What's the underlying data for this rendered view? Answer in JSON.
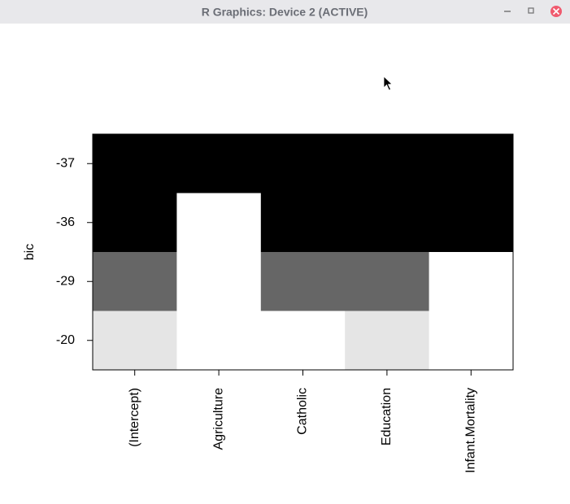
{
  "window": {
    "title": "R Graphics: Device 2 (ACTIVE)"
  },
  "chart_data": {
    "type": "heatmap",
    "ylabel": "bic",
    "x_categories": [
      "(Intercept)",
      "Agriculture",
      "Catholic",
      "Education",
      "Infant.Mortality"
    ],
    "y_categories": [
      "-37",
      "-36",
      "-29",
      "-20"
    ],
    "row_colors": [
      "#000000",
      "#000000",
      "#666666",
      "#e5e5e5"
    ],
    "matrix": [
      [
        1,
        1,
        1,
        1,
        1
      ],
      [
        1,
        0,
        1,
        1,
        1
      ],
      [
        1,
        0,
        1,
        1,
        0
      ],
      [
        1,
        0,
        0,
        1,
        0
      ]
    ]
  }
}
